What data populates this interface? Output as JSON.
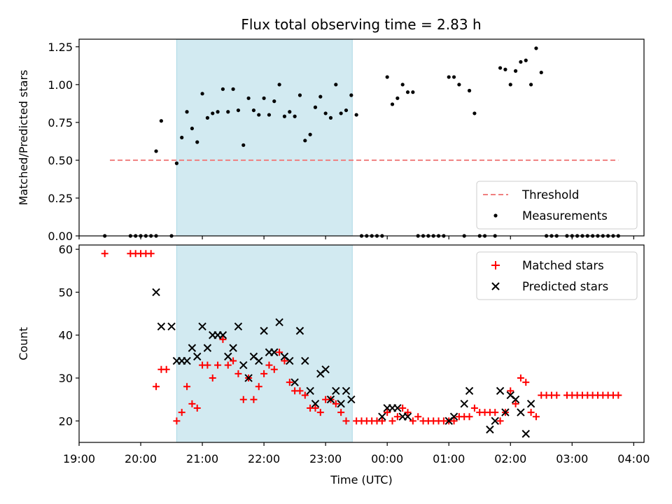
{
  "title": "Flux total observing time = 2.83 h",
  "colors": {
    "threshold": "#f08080",
    "measurement": "#000000",
    "matched": "#ff0000",
    "predicted": "#000000",
    "span": "#add8e6"
  },
  "chart_data": [
    {
      "type": "scatter",
      "ylabel": "Matched/Predicted stars",
      "ylim": [
        0,
        1.3
      ],
      "yticks": [
        "0.00",
        "0.25",
        "0.50",
        "0.75",
        "1.00",
        "1.25"
      ],
      "xlim": [
        "19:00",
        "04:10"
      ],
      "shaded_span": [
        "20:35",
        "23:26"
      ],
      "legend": {
        "placement": "lower right",
        "entries": [
          "Threshold",
          "Measurements"
        ]
      },
      "threshold": {
        "name": "Threshold",
        "y": 0.5,
        "x": [
          "19:30",
          "03:45"
        ]
      },
      "series": [
        {
          "name": "Measurements",
          "points": [
            [
              "19:25",
              0.0
            ],
            [
              "19:50",
              0.0
            ],
            [
              "19:55",
              0.0
            ],
            [
              "20:00",
              0.0
            ],
            [
              "20:05",
              0.0
            ],
            [
              "20:10",
              0.0
            ],
            [
              "20:15",
              0.0
            ],
            [
              "20:15",
              0.56
            ],
            [
              "20:20",
              0.76
            ],
            [
              "20:30",
              0.0
            ],
            [
              "20:35",
              0.48
            ],
            [
              "20:40",
              0.65
            ],
            [
              "20:45",
              0.82
            ],
            [
              "20:50",
              0.71
            ],
            [
              "20:55",
              0.62
            ],
            [
              "21:00",
              0.94
            ],
            [
              "21:05",
              0.78
            ],
            [
              "21:10",
              0.81
            ],
            [
              "21:15",
              0.82
            ],
            [
              "21:20",
              0.97
            ],
            [
              "21:25",
              0.82
            ],
            [
              "21:30",
              0.97
            ],
            [
              "21:35",
              0.83
            ],
            [
              "21:40",
              0.6
            ],
            [
              "21:45",
              0.91
            ],
            [
              "21:50",
              0.83
            ],
            [
              "21:55",
              0.8
            ],
            [
              "22:00",
              0.91
            ],
            [
              "22:05",
              0.8
            ],
            [
              "22:10",
              0.89
            ],
            [
              "22:15",
              1.0
            ],
            [
              "22:20",
              0.79
            ],
            [
              "22:25",
              0.82
            ],
            [
              "22:30",
              0.79
            ],
            [
              "22:35",
              0.93
            ],
            [
              "22:40",
              0.63
            ],
            [
              "22:45",
              0.67
            ],
            [
              "22:50",
              0.85
            ],
            [
              "22:55",
              0.92
            ],
            [
              "23:00",
              0.81
            ],
            [
              "23:05",
              0.78
            ],
            [
              "23:10",
              1.0
            ],
            [
              "23:15",
              0.81
            ],
            [
              "23:20",
              0.83
            ],
            [
              "23:25",
              0.93
            ],
            [
              "23:30",
              0.8
            ],
            [
              "23:35",
              0.0
            ],
            [
              "23:40",
              0.0
            ],
            [
              "23:45",
              0.0
            ],
            [
              "23:50",
              0.0
            ],
            [
              "23:55",
              0.0
            ],
            [
              "00:00",
              1.05
            ],
            [
              "00:05",
              0.87
            ],
            [
              "00:10",
              0.91
            ],
            [
              "00:15",
              1.0
            ],
            [
              "00:20",
              0.95
            ],
            [
              "00:25",
              0.95
            ],
            [
              "00:30",
              0.0
            ],
            [
              "00:35",
              0.0
            ],
            [
              "00:40",
              0.0
            ],
            [
              "00:45",
              0.0
            ],
            [
              "00:50",
              0.0
            ],
            [
              "00:55",
              0.0
            ],
            [
              "01:00",
              1.05
            ],
            [
              "01:05",
              1.05
            ],
            [
              "01:10",
              1.0
            ],
            [
              "01:15",
              0.0
            ],
            [
              "01:20",
              0.96
            ],
            [
              "01:25",
              0.81
            ],
            [
              "01:30",
              0.0
            ],
            [
              "01:35",
              0.0
            ],
            [
              "01:45",
              0.0
            ],
            [
              "01:50",
              1.11
            ],
            [
              "01:55",
              1.1
            ],
            [
              "02:00",
              1.0
            ],
            [
              "02:05",
              1.09
            ],
            [
              "02:10",
              1.15
            ],
            [
              "02:15",
              1.16
            ],
            [
              "02:20",
              1.0
            ],
            [
              "02:25",
              1.24
            ],
            [
              "02:30",
              1.08
            ],
            [
              "02:35",
              0.0
            ],
            [
              "02:40",
              0.0
            ],
            [
              "02:45",
              0.0
            ],
            [
              "02:55",
              0.0
            ],
            [
              "03:00",
              0.0
            ],
            [
              "03:05",
              0.0
            ],
            [
              "03:10",
              0.0
            ],
            [
              "03:15",
              0.0
            ],
            [
              "03:20",
              0.0
            ],
            [
              "03:25",
              0.0
            ],
            [
              "03:30",
              0.0
            ],
            [
              "03:35",
              0.0
            ],
            [
              "03:40",
              0.0
            ],
            [
              "03:45",
              0.0
            ]
          ]
        }
      ]
    },
    {
      "type": "scatter",
      "xlabel": "Time (UTC)",
      "ylabel": "Count",
      "ylim": [
        15,
        61
      ],
      "yticks": [
        "20",
        "30",
        "40",
        "50",
        "60"
      ],
      "xlim": [
        "19:00",
        "04:10"
      ],
      "xticks": [
        "19:00",
        "20:00",
        "21:00",
        "22:00",
        "23:00",
        "00:00",
        "01:00",
        "02:00",
        "03:00",
        "04:00"
      ],
      "shaded_span": [
        "20:35",
        "23:26"
      ],
      "legend": {
        "placement": "upper right",
        "entries": [
          "Matched stars",
          "Predicted stars"
        ]
      },
      "series": [
        {
          "name": "Matched stars",
          "points": [
            [
              "19:25",
              59
            ],
            [
              "19:50",
              59
            ],
            [
              "19:55",
              59
            ],
            [
              "20:00",
              59
            ],
            [
              "20:05",
              59
            ],
            [
              "20:10",
              59
            ],
            [
              "20:15",
              28
            ],
            [
              "20:20",
              32
            ],
            [
              "20:25",
              32
            ],
            [
              "20:35",
              20
            ],
            [
              "20:40",
              22
            ],
            [
              "20:45",
              28
            ],
            [
              "20:50",
              24
            ],
            [
              "20:55",
              23
            ],
            [
              "21:00",
              33
            ],
            [
              "21:05",
              33
            ],
            [
              "21:10",
              30
            ],
            [
              "21:15",
              33
            ],
            [
              "21:20",
              39
            ],
            [
              "21:25",
              33
            ],
            [
              "21:30",
              34
            ],
            [
              "21:35",
              31
            ],
            [
              "21:40",
              25
            ],
            [
              "21:45",
              30
            ],
            [
              "21:50",
              25
            ],
            [
              "21:55",
              28
            ],
            [
              "22:00",
              31
            ],
            [
              "22:05",
              33
            ],
            [
              "22:10",
              32
            ],
            [
              "22:15",
              36
            ],
            [
              "22:20",
              34
            ],
            [
              "22:25",
              29
            ],
            [
              "22:30",
              27
            ],
            [
              "22:35",
              27
            ],
            [
              "22:40",
              26
            ],
            [
              "22:45",
              23
            ],
            [
              "22:50",
              23
            ],
            [
              "22:55",
              22
            ],
            [
              "23:00",
              25
            ],
            [
              "23:05",
              25
            ],
            [
              "23:10",
              24
            ],
            [
              "23:15",
              22
            ],
            [
              "23:20",
              20
            ],
            [
              "23:30",
              20
            ],
            [
              "23:35",
              20
            ],
            [
              "23:40",
              20
            ],
            [
              "23:45",
              20
            ],
            [
              "23:50",
              20
            ],
            [
              "23:55",
              20
            ],
            [
              "00:00",
              22
            ],
            [
              "00:05",
              20
            ],
            [
              "00:10",
              21
            ],
            [
              "00:15",
              23
            ],
            [
              "00:20",
              22
            ],
            [
              "00:25",
              20
            ],
            [
              "00:30",
              21
            ],
            [
              "00:35",
              20
            ],
            [
              "00:40",
              20
            ],
            [
              "00:45",
              20
            ],
            [
              "00:50",
              20
            ],
            [
              "00:55",
              20
            ],
            [
              "01:00",
              20
            ],
            [
              "01:05",
              20
            ],
            [
              "01:10",
              21
            ],
            [
              "01:15",
              21
            ],
            [
              "01:20",
              21
            ],
            [
              "01:25",
              23
            ],
            [
              "01:30",
              22
            ],
            [
              "01:35",
              22
            ],
            [
              "01:40",
              22
            ],
            [
              "01:45",
              22
            ],
            [
              "01:50",
              20
            ],
            [
              "01:55",
              22
            ],
            [
              "02:00",
              27
            ],
            [
              "02:05",
              24
            ],
            [
              "02:10",
              30
            ],
            [
              "02:15",
              29
            ],
            [
              "02:20",
              22
            ],
            [
              "02:25",
              21
            ],
            [
              "02:30",
              26
            ],
            [
              "02:35",
              26
            ],
            [
              "02:40",
              26
            ],
            [
              "02:45",
              26
            ],
            [
              "02:55",
              26
            ],
            [
              "03:00",
              26
            ],
            [
              "03:05",
              26
            ],
            [
              "03:10",
              26
            ],
            [
              "03:15",
              26
            ],
            [
              "03:20",
              26
            ],
            [
              "03:25",
              26
            ],
            [
              "03:30",
              26
            ],
            [
              "03:35",
              26
            ],
            [
              "03:40",
              26
            ],
            [
              "03:45",
              26
            ]
          ]
        },
        {
          "name": "Predicted stars",
          "points": [
            [
              "20:15",
              50
            ],
            [
              "20:20",
              42
            ],
            [
              "20:30",
              42
            ],
            [
              "20:35",
              34
            ],
            [
              "20:40",
              34
            ],
            [
              "20:45",
              34
            ],
            [
              "20:50",
              37
            ],
            [
              "20:55",
              35
            ],
            [
              "21:00",
              42
            ],
            [
              "21:05",
              37
            ],
            [
              "21:10",
              40
            ],
            [
              "21:15",
              40
            ],
            [
              "21:20",
              40
            ],
            [
              "21:25",
              35
            ],
            [
              "21:30",
              37
            ],
            [
              "21:35",
              42
            ],
            [
              "21:40",
              33
            ],
            [
              "21:45",
              30
            ],
            [
              "21:50",
              35
            ],
            [
              "21:55",
              34
            ],
            [
              "22:00",
              41
            ],
            [
              "22:05",
              36
            ],
            [
              "22:10",
              36
            ],
            [
              "22:15",
              43
            ],
            [
              "22:20",
              35
            ],
            [
              "22:25",
              34
            ],
            [
              "22:30",
              29
            ],
            [
              "22:35",
              41
            ],
            [
              "22:40",
              34
            ],
            [
              "22:45",
              27
            ],
            [
              "22:50",
              24
            ],
            [
              "22:55",
              31
            ],
            [
              "23:00",
              32
            ],
            [
              "23:05",
              25
            ],
            [
              "23:10",
              27
            ],
            [
              "23:15",
              24
            ],
            [
              "23:20",
              27
            ],
            [
              "23:25",
              25
            ],
            [
              "23:55",
              21
            ],
            [
              "00:00",
              23
            ],
            [
              "00:05",
              23
            ],
            [
              "00:10",
              23
            ],
            [
              "00:15",
              21
            ],
            [
              "00:20",
              21
            ],
            [
              "01:00",
              20
            ],
            [
              "01:05",
              21
            ],
            [
              "01:15",
              24
            ],
            [
              "01:20",
              27
            ],
            [
              "01:40",
              18
            ],
            [
              "01:45",
              20
            ],
            [
              "01:50",
              27
            ],
            [
              "01:55",
              22
            ],
            [
              "02:00",
              26
            ],
            [
              "02:05",
              25
            ],
            [
              "02:10",
              22
            ],
            [
              "02:15",
              17
            ],
            [
              "02:20",
              24
            ]
          ]
        }
      ]
    }
  ]
}
